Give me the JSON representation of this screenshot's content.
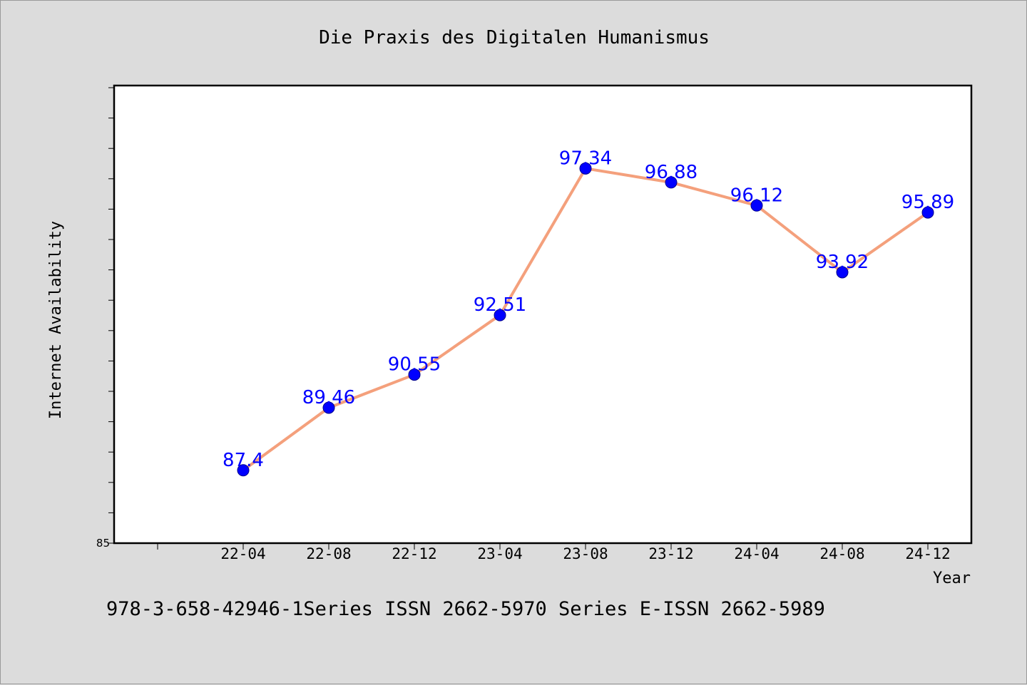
{
  "chart_data": {
    "type": "line",
    "title": "Die Praxis des Digitalen Humanismus",
    "xlabel": "Year",
    "ylabel": "Internet Availability",
    "categories": [
      "22-04",
      "22-08",
      "22-12",
      "23-04",
      "23-08",
      "23-12",
      "24-04",
      "24-08",
      "24-12"
    ],
    "series": [
      {
        "values": [
          87.4,
          89.46,
          90.55,
          92.51,
          97.34,
          96.88,
          96.12,
          93.92,
          95.89
        ]
      }
    ],
    "data_labels": [
      "87.4",
      "89.46",
      "90.55",
      "92.51",
      "97.34",
      "96.88",
      "96.12",
      "93.92",
      "95.89"
    ],
    "ylim": [
      85,
      100
    ],
    "y_tick_labels": [
      "85"
    ],
    "grid": false,
    "line_color": "#f4a07c",
    "marker_color": "#0000ff",
    "label_color": "#0000ff"
  },
  "footer_text": "978-3-658-42946-1Series ISSN 2662-5970 Series E-ISSN 2662-5989"
}
